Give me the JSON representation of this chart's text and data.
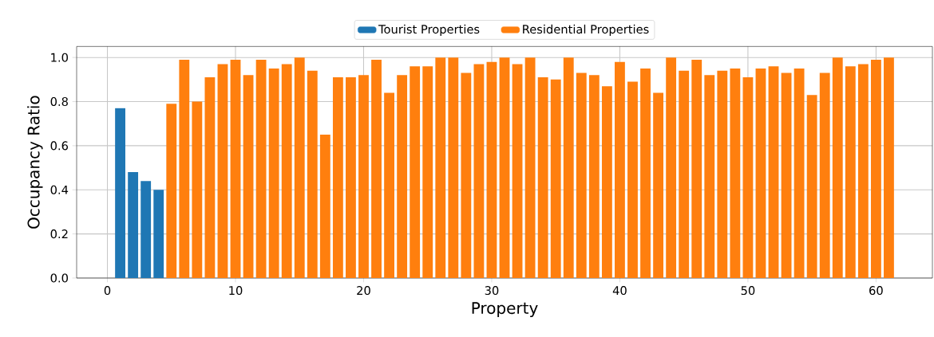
{
  "chart_data": {
    "type": "bar",
    "xlabel": "Property",
    "ylabel": "Occupancy Ratio",
    "series": [
      {
        "name": "Tourist Properties",
        "color": "#1f77b4",
        "x": [
          1,
          2,
          3,
          4
        ],
        "values": [
          0.77,
          0.48,
          0.44,
          0.4
        ]
      },
      {
        "name": "Residential Properties",
        "color": "#ff7f0e",
        "x": [
          5,
          6,
          7,
          8,
          9,
          10,
          11,
          12,
          13,
          14,
          15,
          16,
          17,
          18,
          19,
          20,
          21,
          22,
          23,
          24,
          25,
          26,
          27,
          28,
          29,
          30,
          31,
          32,
          33,
          34,
          35,
          36,
          37,
          38,
          39,
          40,
          41,
          42,
          43,
          44,
          45,
          46,
          47,
          48,
          49,
          50,
          51,
          52,
          53,
          54,
          55,
          56,
          57,
          58,
          59,
          60,
          61
        ],
        "values": [
          0.79,
          0.99,
          0.8,
          0.91,
          0.97,
          0.99,
          0.92,
          0.99,
          0.95,
          0.97,
          1.0,
          0.94,
          0.65,
          0.91,
          0.91,
          0.92,
          0.99,
          0.84,
          0.92,
          0.96,
          0.96,
          1.0,
          1.0,
          0.93,
          0.97,
          0.98,
          1.0,
          0.97,
          1.0,
          0.91,
          0.9,
          1.0,
          0.93,
          0.92,
          0.87,
          0.98,
          0.89,
          0.95,
          0.84,
          1.0,
          0.94,
          0.99,
          0.92,
          0.94,
          0.95,
          0.91,
          0.95,
          0.96,
          0.93,
          0.95,
          0.83,
          0.93,
          1.0,
          0.96,
          0.97,
          0.99,
          1.0
        ]
      }
    ],
    "xlim": [
      -2.4,
      64.4
    ],
    "ylim": [
      0,
      1.05
    ],
    "xticks": [
      0,
      10,
      20,
      30,
      40,
      50,
      60
    ],
    "yticks": [
      {
        "value": 0,
        "label": "0.0"
      },
      {
        "value": 0.2,
        "label": "0.2"
      },
      {
        "value": 0.4,
        "label": "0.4"
      },
      {
        "value": 0.6,
        "label": "0.6"
      },
      {
        "value": 0.8,
        "label": "0.8"
      },
      {
        "value": 1.0,
        "label": "1.0"
      }
    ],
    "grid": true,
    "legend": "top"
  }
}
